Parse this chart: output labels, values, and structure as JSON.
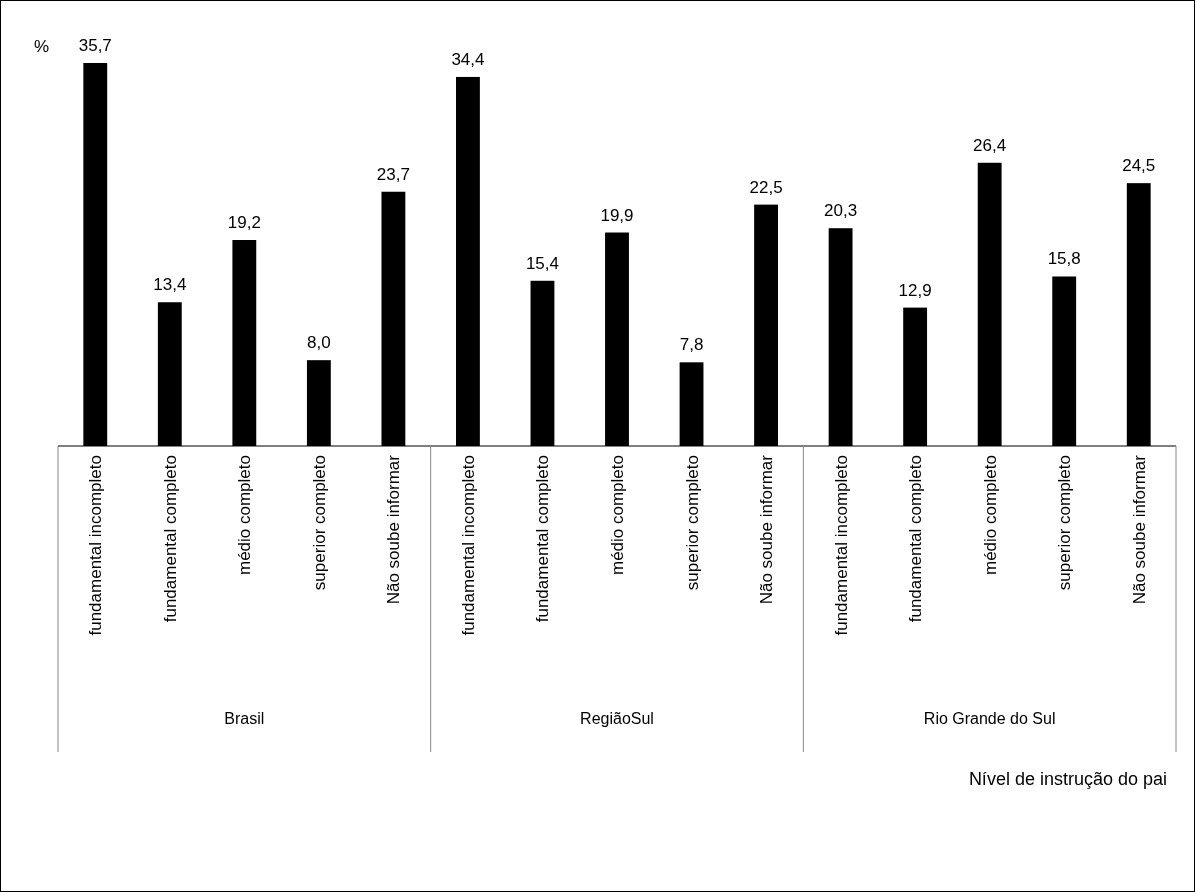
{
  "chart_data": {
    "type": "bar",
    "ylabel": "%",
    "categories": [
      "fundamental incompleto",
      "fundamental completo",
      "médio completo",
      "superior completo",
      "Não soube informar",
      "fundamental incompleto",
      "fundamental completo",
      "médio completo",
      "superior completo",
      "Não soube informar",
      "fundamental incompleto",
      "fundamental completo",
      "médio completo",
      "superior completo",
      "Não soube informar"
    ],
    "values": [
      35.7,
      13.4,
      19.2,
      8.0,
      23.7,
      34.4,
      15.4,
      19.9,
      7.8,
      22.5,
      20.3,
      12.9,
      26.4,
      15.8,
      24.5
    ],
    "value_labels": [
      "35,7",
      "13,4",
      "19,2",
      "8,0",
      "23,7",
      "34,4",
      "15,4",
      "19,9",
      "7,8",
      "22,5",
      "20,3",
      "12,9",
      "26,4",
      "15,8",
      "24,5"
    ],
    "color": "#000000",
    "annotations": [
      "Brasil",
      "RegiãoSul",
      "Rio Grande do Sul",
      "Nível de instrução do pai"
    ]
  }
}
